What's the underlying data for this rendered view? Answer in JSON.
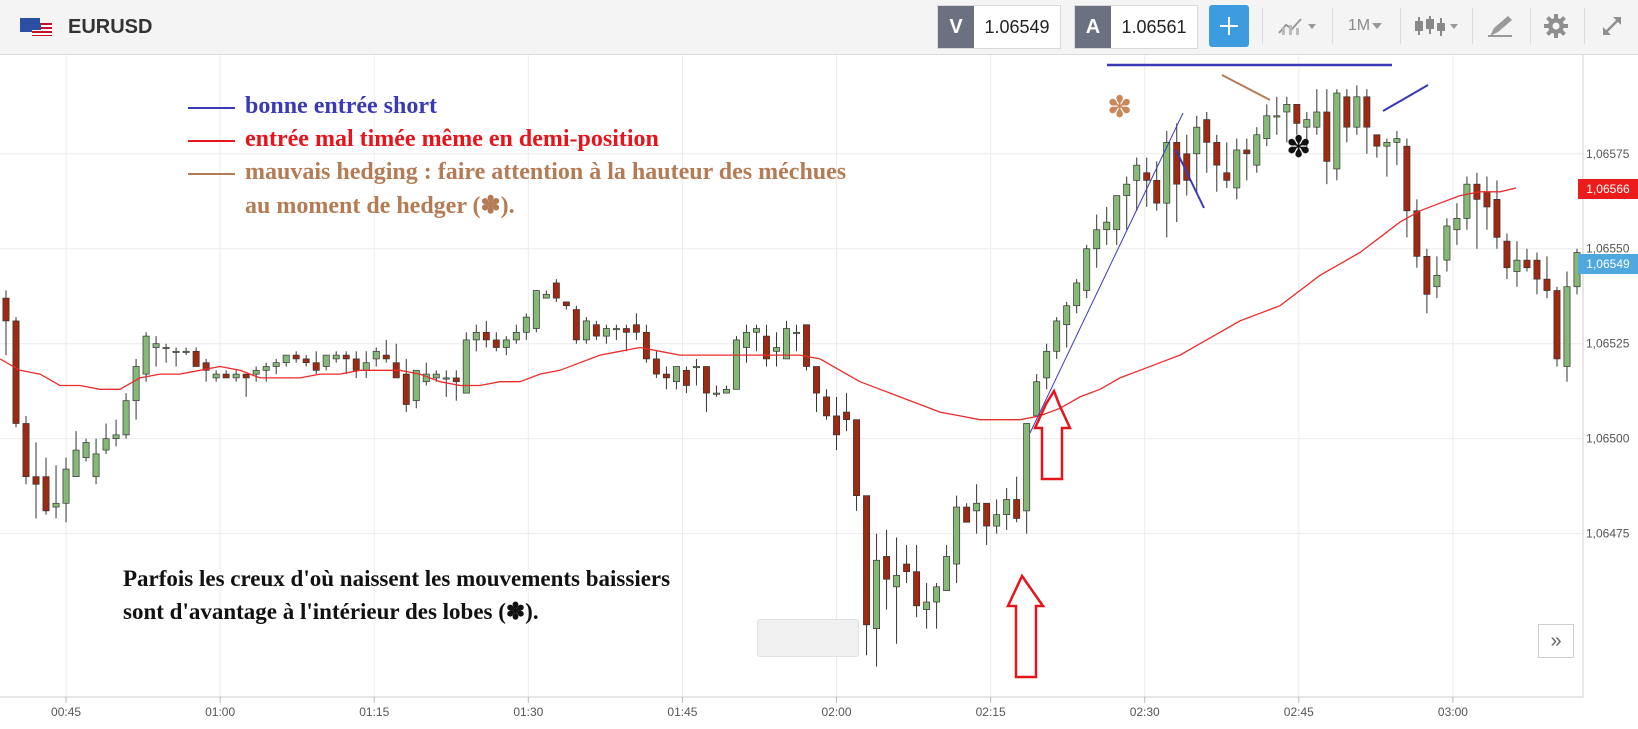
{
  "toolbar": {
    "symbol": "EURUSD",
    "bid_label": "V",
    "bid_value": "1.06549",
    "ask_label": "A",
    "ask_value": "1.06561",
    "timeframe": "1M"
  },
  "annotations": {
    "legend": [
      {
        "text": "bonne entrée short",
        "color": "#3a3ab8"
      },
      {
        "text": "entrée mal timée même en demi-position",
        "color": "#e8141c"
      },
      {
        "text": "mauvais hedging : faire attention à la hauteur des méchues",
        "color": "#b57b55"
      },
      {
        "text": "au moment de hedger (✽).",
        "color": "#b57b55"
      }
    ],
    "note_line1": "Parfois les creux d'où naissent les mouvements baissiers",
    "note_line2": "sont d'avantage à l'intérieur des lobes (✽).",
    "star_symbol": "✽"
  },
  "chart_data": {
    "type": "candlestick",
    "symbol": "EURUSD",
    "interval": "1M",
    "xlabel": "",
    "ylabel": "",
    "y_ticks": [
      "1,06475",
      "1,06500",
      "1,06525",
      "1,06550",
      "1,06575"
    ],
    "x_ticks": [
      "00:45",
      "01:00",
      "01:15",
      "01:30",
      "01:45",
      "02:00",
      "02:15",
      "02:30",
      "02:45",
      "03:00"
    ],
    "ylim": [
      1.06432,
      1.06601
    ],
    "current_bid": "1,06549",
    "moving_average_last": "1,06566",
    "colors": {
      "up": "#86b977",
      "down": "#9e2a12",
      "ma": "#ec2b2b",
      "bid_tag": "#4fa8e0",
      "ma_tag": "#ec1c1c",
      "grid": "#ececec"
    },
    "candles": [
      [
        1.06537,
        1.06539,
        1.06522,
        1.06531
      ],
      [
        1.06531,
        1.06532,
        1.06503,
        1.06504
      ],
      [
        1.06504,
        1.06506,
        1.06488,
        1.0649
      ],
      [
        1.0649,
        1.06499,
        1.06479,
        1.06488
      ],
      [
        1.0649,
        1.06495,
        1.0648,
        1.06481
      ],
      [
        1.06482,
        1.06493,
        1.06479,
        1.06483
      ],
      [
        1.06483,
        1.06495,
        1.06478,
        1.06492
      ],
      [
        1.0649,
        1.06502,
        1.0649,
        1.06497
      ],
      [
        1.06495,
        1.065,
        1.06494,
        1.06499
      ],
      [
        1.0649,
        1.065,
        1.06488,
        1.06496
      ],
      [
        1.06497,
        1.06504,
        1.06496,
        1.065
      ],
      [
        1.065,
        1.06505,
        1.06498,
        1.06501
      ],
      [
        1.06501,
        1.06512,
        1.065,
        1.0651
      ],
      [
        1.0651,
        1.06521,
        1.06505,
        1.06519
      ],
      [
        1.06517,
        1.06528,
        1.06515,
        1.06527
      ],
      [
        1.06524,
        1.06527,
        1.06519,
        1.06525
      ],
      [
        1.06524,
        1.06525,
        1.0652,
        1.06524
      ],
      [
        1.06523,
        1.06524,
        1.06519,
        1.06523
      ],
      [
        1.06523,
        1.06524,
        1.06522,
        1.06523
      ],
      [
        1.06523,
        1.06524,
        1.0652,
        1.06519
      ],
      [
        1.0652,
        1.06521,
        1.06515,
        1.06518
      ],
      [
        1.06516,
        1.06518,
        1.06515,
        1.06517
      ],
      [
        1.06517,
        1.06518,
        1.06516,
        1.06516
      ],
      [
        1.06516,
        1.06518,
        1.06515,
        1.06517
      ],
      [
        1.06517,
        1.06517,
        1.06511,
        1.06516
      ],
      [
        1.06517,
        1.06519,
        1.06515,
        1.06518
      ],
      [
        1.06518,
        1.0652,
        1.06515,
        1.06519
      ],
      [
        1.06519,
        1.06521,
        1.06517,
        1.0652
      ],
      [
        1.0652,
        1.06522,
        1.06519,
        1.06522
      ],
      [
        1.06522,
        1.06523,
        1.0652,
        1.06521
      ],
      [
        1.06521,
        1.06522,
        1.06519,
        1.0652
      ],
      [
        1.0652,
        1.06523,
        1.06517,
        1.06518
      ],
      [
        1.06519,
        1.06522,
        1.06518,
        1.06522
      ],
      [
        1.06521,
        1.06523,
        1.0652,
        1.06522
      ],
      [
        1.06522,
        1.06523,
        1.06517,
        1.06521
      ],
      [
        1.06521,
        1.06523,
        1.06516,
        1.06518
      ],
      [
        1.06518,
        1.06523,
        1.06516,
        1.0652
      ],
      [
        1.06521,
        1.06524,
        1.06519,
        1.06523
      ],
      [
        1.06522,
        1.06526,
        1.0652,
        1.06521
      ],
      [
        1.0652,
        1.06525,
        1.06516,
        1.06516
      ],
      [
        1.06517,
        1.06521,
        1.06507,
        1.06509
      ],
      [
        1.0651,
        1.06518,
        1.06508,
        1.06518
      ],
      [
        1.06515,
        1.0652,
        1.06514,
        1.06517
      ],
      [
        1.06516,
        1.06518,
        1.06515,
        1.06517
      ],
      [
        1.06516,
        1.06518,
        1.06511,
        1.06516
      ],
      [
        1.06516,
        1.06518,
        1.0651,
        1.06515
      ],
      [
        1.06512,
        1.06528,
        1.06512,
        1.06526
      ],
      [
        1.06526,
        1.0653,
        1.06523,
        1.06528
      ],
      [
        1.06528,
        1.06531,
        1.06524,
        1.06526
      ],
      [
        1.06526,
        1.06528,
        1.06523,
        1.06524
      ],
      [
        1.06524,
        1.06527,
        1.06522,
        1.06526
      ],
      [
        1.06526,
        1.0653,
        1.06525,
        1.06528
      ],
      [
        1.06528,
        1.06533,
        1.06526,
        1.06532
      ],
      [
        1.06529,
        1.06539,
        1.06528,
        1.06539
      ],
      [
        1.06537,
        1.06539,
        1.06537,
        1.06538
      ],
      [
        1.06541,
        1.06542,
        1.06536,
        1.06537
      ],
      [
        1.06536,
        1.06536,
        1.06534,
        1.06535
      ],
      [
        1.06534,
        1.06535,
        1.06525,
        1.06526
      ],
      [
        1.06526,
        1.06532,
        1.06525,
        1.06531
      ],
      [
        1.0653,
        1.06531,
        1.06526,
        1.06527
      ],
      [
        1.06527,
        1.0653,
        1.06525,
        1.06529
      ],
      [
        1.06529,
        1.0653,
        1.06526,
        1.06529
      ],
      [
        1.06529,
        1.0653,
        1.06523,
        1.06528
      ],
      [
        1.0653,
        1.06533,
        1.06526,
        1.06528
      ],
      [
        1.06528,
        1.0653,
        1.0652,
        1.06521
      ],
      [
        1.06521,
        1.06523,
        1.06516,
        1.06517
      ],
      [
        1.06517,
        1.06519,
        1.06513,
        1.06516
      ],
      [
        1.06515,
        1.06519,
        1.06513,
        1.06519
      ],
      [
        1.06518,
        1.06519,
        1.06512,
        1.06514
      ],
      [
        1.06519,
        1.06521,
        1.06514,
        1.06519
      ],
      [
        1.06519,
        1.06519,
        1.06507,
        1.06512
      ],
      [
        1.06512,
        1.06514,
        1.06511,
        1.06512
      ],
      [
        1.06512,
        1.06514,
        1.06512,
        1.06513
      ],
      [
        1.06513,
        1.06527,
        1.06513,
        1.06526
      ],
      [
        1.06524,
        1.0653,
        1.0652,
        1.06528
      ],
      [
        1.06528,
        1.0653,
        1.06523,
        1.06529
      ],
      [
        1.06527,
        1.0653,
        1.06519,
        1.06521
      ],
      [
        1.06523,
        1.06528,
        1.06519,
        1.06524
      ],
      [
        1.06521,
        1.06531,
        1.06521,
        1.06529
      ],
      [
        1.06528,
        1.0653,
        1.06523,
        1.06528
      ],
      [
        1.0653,
        1.0653,
        1.06518,
        1.06519
      ],
      [
        1.06519,
        1.06519,
        1.06507,
        1.06512
      ],
      [
        1.06511,
        1.06513,
        1.06505,
        1.06506
      ],
      [
        1.06506,
        1.06511,
        1.06497,
        1.06501
      ],
      [
        1.06507,
        1.06512,
        1.06502,
        1.06505
      ],
      [
        1.06505,
        1.06505,
        1.06481,
        1.06485
      ],
      [
        1.06485,
        1.06485,
        1.06443,
        1.06451
      ],
      [
        1.0645,
        1.06475,
        1.0644,
        1.06468
      ],
      [
        1.06469,
        1.06476,
        1.06455,
        1.06463
      ],
      [
        1.06461,
        1.06474,
        1.06446,
        1.06464
      ],
      [
        1.06467,
        1.06472,
        1.06462,
        1.06465
      ],
      [
        1.06465,
        1.06472,
        1.06453,
        1.06456
      ],
      [
        1.06455,
        1.06462,
        1.0645,
        1.06457
      ],
      [
        1.06457,
        1.06462,
        1.0645,
        1.06461
      ],
      [
        1.0646,
        1.06472,
        1.0646,
        1.06469
      ],
      [
        1.06467,
        1.06485,
        1.06462,
        1.06482
      ],
      [
        1.06482,
        1.06483,
        1.06478,
        1.06478
      ],
      [
        1.06481,
        1.06488,
        1.06475,
        1.06483
      ],
      [
        1.06483,
        1.06483,
        1.06472,
        1.06477
      ],
      [
        1.06477,
        1.06484,
        1.06475,
        1.0648
      ],
      [
        1.0648,
        1.06487,
        1.06476,
        1.06484
      ],
      [
        1.06484,
        1.0649,
        1.06478,
        1.06479
      ],
      [
        1.06481,
        1.06504,
        1.06475,
        1.06504
      ],
      [
        1.06506,
        1.06517,
        1.06506,
        1.06515
      ],
      [
        1.06516,
        1.06525,
        1.06513,
        1.06523
      ],
      [
        1.06523,
        1.06532,
        1.06521,
        1.06531
      ],
      [
        1.0653,
        1.06536,
        1.06524,
        1.06535
      ],
      [
        1.06535,
        1.06542,
        1.06533,
        1.06541
      ],
      [
        1.06539,
        1.06551,
        1.06537,
        1.0655
      ],
      [
        1.0655,
        1.06559,
        1.06545,
        1.06555
      ],
      [
        1.06555,
        1.06561,
        1.06551,
        1.06557
      ],
      [
        1.06555,
        1.06564,
        1.06551,
        1.06564
      ],
      [
        1.06564,
        1.06569,
        1.06555,
        1.06567
      ],
      [
        1.06568,
        1.06574,
        1.0656,
        1.06572
      ],
      [
        1.0657,
        1.06574,
        1.06561,
        1.06568
      ],
      [
        1.06568,
        1.06573,
        1.0656,
        1.06562
      ],
      [
        1.06562,
        1.06581,
        1.06553,
        1.06578
      ],
      [
        1.06578,
        1.06583,
        1.06557,
        1.06567
      ],
      [
        1.06575,
        1.0658,
        1.06564,
        1.06568
      ],
      [
        1.06575,
        1.06585,
        1.06565,
        1.06582
      ],
      [
        1.06584,
        1.06586,
        1.0657,
        1.06578
      ],
      [
        1.06578,
        1.0658,
        1.06565,
        1.06572
      ],
      [
        1.0657,
        1.06578,
        1.06566,
        1.06568
      ],
      [
        1.06566,
        1.06579,
        1.06563,
        1.06576
      ],
      [
        1.06576,
        1.06579,
        1.06568,
        1.06575
      ],
      [
        1.06572,
        1.06582,
        1.0657,
        1.0658
      ],
      [
        1.06579,
        1.06588,
        1.06577,
        1.06585
      ],
      [
        1.06585,
        1.0659,
        1.0658,
        1.06585
      ],
      [
        1.06586,
        1.0659,
        1.06578,
        1.06588
      ],
      [
        1.06588,
        1.06588,
        1.0658,
        1.06583
      ],
      [
        1.06582,
        1.06586,
        1.06576,
        1.06584
      ],
      [
        1.06582,
        1.06592,
        1.0658,
        1.06586
      ],
      [
        1.06586,
        1.06592,
        1.06567,
        1.06573
      ],
      [
        1.06571,
        1.06592,
        1.06568,
        1.06591
      ],
      [
        1.0659,
        1.06592,
        1.06578,
        1.06582
      ],
      [
        1.06582,
        1.06593,
        1.0658,
        1.0659
      ],
      [
        1.0659,
        1.06592,
        1.06575,
        1.06582
      ],
      [
        1.0658,
        1.0658,
        1.06574,
        1.06577
      ],
      [
        1.06577,
        1.06579,
        1.06569,
        1.06578
      ],
      [
        1.06578,
        1.06581,
        1.06572,
        1.06579
      ],
      [
        1.06577,
        1.06579,
        1.06553,
        1.0656
      ],
      [
        1.0656,
        1.06563,
        1.06545,
        1.06548
      ],
      [
        1.06548,
        1.0655,
        1.06533,
        1.06538
      ],
      [
        1.0654,
        1.06548,
        1.06537,
        1.06543
      ],
      [
        1.06547,
        1.06558,
        1.06544,
        1.06556
      ],
      [
        1.06555,
        1.06562,
        1.06551,
        1.06558
      ],
      [
        1.06558,
        1.06569,
        1.06555,
        1.06567
      ],
      [
        1.06567,
        1.0657,
        1.0655,
        1.06563
      ],
      [
        1.06565,
        1.06569,
        1.06555,
        1.06561
      ],
      [
        1.06563,
        1.06568,
        1.0655,
        1.06553
      ],
      [
        1.06552,
        1.06554,
        1.06542,
        1.06545
      ],
      [
        1.06544,
        1.06552,
        1.0654,
        1.06547
      ],
      [
        1.06547,
        1.0655,
        1.06544,
        1.06545
      ],
      [
        1.06547,
        1.06549,
        1.06538,
        1.06542
      ],
      [
        1.06542,
        1.06548,
        1.06537,
        1.06539
      ],
      [
        1.06539,
        1.0654,
        1.06519,
        1.06521
      ],
      [
        1.06519,
        1.06544,
        1.06515,
        1.0654
      ],
      [
        1.0654,
        1.0655,
        1.06538,
        1.06549
      ]
    ],
    "moving_average": [
      [
        0,
        1.06521
      ],
      [
        20,
        1.06518
      ],
      [
        40,
        1.06517
      ],
      [
        60,
        1.06514
      ],
      [
        80,
        1.06514
      ],
      [
        100,
        1.06513
      ],
      [
        120,
        1.06513
      ],
      [
        140,
        1.06516
      ],
      [
        160,
        1.06517
      ],
      [
        180,
        1.06517
      ],
      [
        200,
        1.06518
      ],
      [
        220,
        1.06519
      ],
      [
        240,
        1.06518
      ],
      [
        260,
        1.06516
      ],
      [
        280,
        1.06516
      ],
      [
        300,
        1.06516
      ],
      [
        320,
        1.06517
      ],
      [
        340,
        1.06517
      ],
      [
        360,
        1.06518
      ],
      [
        380,
        1.06518
      ],
      [
        400,
        1.06518
      ],
      [
        420,
        1.06517
      ],
      [
        440,
        1.06515
      ],
      [
        460,
        1.06514
      ],
      [
        480,
        1.06514
      ],
      [
        500,
        1.06515
      ],
      [
        520,
        1.06515
      ],
      [
        540,
        1.06517
      ],
      [
        560,
        1.06518
      ],
      [
        580,
        1.0652
      ],
      [
        600,
        1.06522
      ],
      [
        620,
        1.06523
      ],
      [
        640,
        1.06524
      ],
      [
        660,
        1.06523
      ],
      [
        680,
        1.06522
      ],
      [
        700,
        1.06522
      ],
      [
        720,
        1.06522
      ],
      [
        740,
        1.06522
      ],
      [
        760,
        1.06522
      ],
      [
        780,
        1.06522
      ],
      [
        800,
        1.06522
      ],
      [
        820,
        1.06521
      ],
      [
        840,
        1.06518
      ],
      [
        860,
        1.06515
      ],
      [
        880,
        1.06513
      ],
      [
        900,
        1.06511
      ],
      [
        920,
        1.06509
      ],
      [
        940,
        1.06507
      ],
      [
        960,
        1.06506
      ],
      [
        980,
        1.06505
      ],
      [
        1000,
        1.06505
      ],
      [
        1020,
        1.06505
      ],
      [
        1040,
        1.06506
      ],
      [
        1060,
        1.06508
      ],
      [
        1080,
        1.06511
      ],
      [
        1100,
        1.06513
      ],
      [
        1120,
        1.06516
      ],
      [
        1140,
        1.06518
      ],
      [
        1160,
        1.0652
      ],
      [
        1180,
        1.06522
      ],
      [
        1200,
        1.06525
      ],
      [
        1220,
        1.06528
      ],
      [
        1240,
        1.06531
      ],
      [
        1260,
        1.06533
      ],
      [
        1280,
        1.06535
      ],
      [
        1300,
        1.06539
      ],
      [
        1320,
        1.06543
      ],
      [
        1340,
        1.06546
      ],
      [
        1360,
        1.06549
      ],
      [
        1380,
        1.06553
      ],
      [
        1400,
        1.06557
      ],
      [
        1420,
        1.0656
      ],
      [
        1440,
        1.06562
      ],
      [
        1460,
        1.06564
      ],
      [
        1480,
        1.06565
      ],
      [
        1500,
        1.06565
      ],
      [
        1516,
        1.06566
      ]
    ]
  }
}
